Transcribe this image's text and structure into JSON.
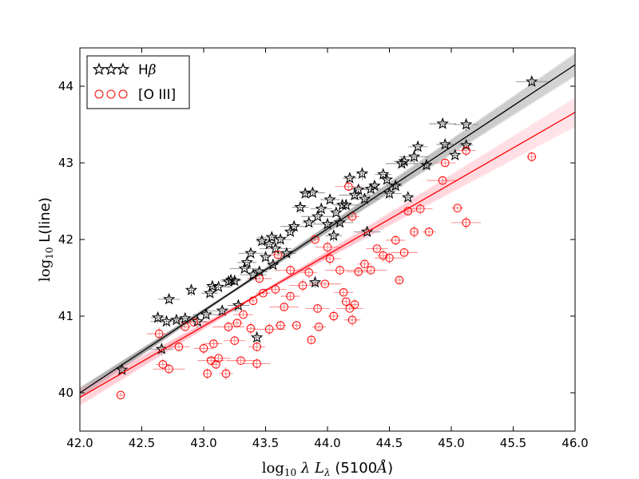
{
  "chart_data": {
    "type": "scatter",
    "title": "",
    "xlabel": "log10 λ Lλ (5100Å)",
    "ylabel": "log10 L(line)",
    "xlabel_parts": {
      "log": "log",
      "sub": "10",
      "mid": " λ L",
      "lam": "λ",
      "tail": " (5100",
      "angstrom": "Å",
      "close": ")"
    },
    "ylabel_parts": {
      "log": "log",
      "sub": "10",
      "rest": " L(line)"
    },
    "xlim": [
      42.0,
      46.0
    ],
    "ylim": [
      39.5,
      44.5
    ],
    "xticks": [
      "42.0",
      "42.5",
      "43.0",
      "43.5",
      "44.0",
      "44.5",
      "45.0",
      "45.5",
      "46.0"
    ],
    "yticks": [
      "40",
      "41",
      "42",
      "43",
      "44"
    ],
    "legend_location": "top-left",
    "colors": {
      "hbeta": "#000000",
      "oiii": "#ff0000",
      "band_hbeta": "#999999",
      "band_oiii": "#ffb3c1"
    },
    "series": [
      {
        "name": "Hβ",
        "legend_label": "Hβ",
        "legend_main": "H",
        "legend_greek": "β",
        "marker": "star",
        "color": "#000000",
        "fit": {
          "slope": 1.07,
          "intercept": -4.94
        },
        "points": [
          [
            42.34,
            40.3
          ],
          [
            42.66,
            40.57
          ],
          [
            42.63,
            40.98
          ],
          [
            42.7,
            40.93
          ],
          [
            42.72,
            41.22
          ],
          [
            42.78,
            40.95
          ],
          [
            42.85,
            40.97
          ],
          [
            42.95,
            40.93
          ],
          [
            42.9,
            41.34
          ],
          [
            43.02,
            41.02
          ],
          [
            43.05,
            41.3
          ],
          [
            43.07,
            41.39
          ],
          [
            43.12,
            41.38
          ],
          [
            43.2,
            41.45
          ],
          [
            43.15,
            41.07
          ],
          [
            43.28,
            41.14
          ],
          [
            43.25,
            41.46
          ],
          [
            43.33,
            41.62
          ],
          [
            43.35,
            41.7
          ],
          [
            43.43,
            40.72
          ],
          [
            43.4,
            41.54
          ],
          [
            43.45,
            41.58
          ],
          [
            43.5,
            41.77
          ],
          [
            43.38,
            41.82
          ],
          [
            43.53,
            41.94
          ],
          [
            43.58,
            41.88
          ],
          [
            43.62,
            42.0
          ],
          [
            43.47,
            41.98
          ],
          [
            43.55,
            42.03
          ],
          [
            43.67,
            41.82
          ],
          [
            43.7,
            42.1
          ],
          [
            43.73,
            42.17
          ],
          [
            43.78,
            42.42
          ],
          [
            43.82,
            42.6
          ],
          [
            43.88,
            42.61
          ],
          [
            43.85,
            42.22
          ],
          [
            43.92,
            42.3
          ],
          [
            43.95,
            42.4
          ],
          [
            43.9,
            41.44
          ],
          [
            44.0,
            42.2
          ],
          [
            44.02,
            42.52
          ],
          [
            44.07,
            42.35
          ],
          [
            44.1,
            42.22
          ],
          [
            44.05,
            42.05
          ],
          [
            44.12,
            42.45
          ],
          [
            44.15,
            42.45
          ],
          [
            44.18,
            42.8
          ],
          [
            44.22,
            42.58
          ],
          [
            44.25,
            42.65
          ],
          [
            44.28,
            42.86
          ],
          [
            44.3,
            42.53
          ],
          [
            44.35,
            42.66
          ],
          [
            44.38,
            42.7
          ],
          [
            44.32,
            42.1
          ],
          [
            44.45,
            42.85
          ],
          [
            44.48,
            42.78
          ],
          [
            44.5,
            42.6
          ],
          [
            44.55,
            42.7
          ],
          [
            44.6,
            42.99
          ],
          [
            44.62,
            43.02
          ],
          [
            44.65,
            42.55
          ],
          [
            44.7,
            43.08
          ],
          [
            44.73,
            43.21
          ],
          [
            44.8,
            42.97
          ],
          [
            44.93,
            43.51
          ],
          [
            44.95,
            43.24
          ],
          [
            45.03,
            43.1
          ],
          [
            45.12,
            43.5
          ],
          [
            45.12,
            43.23
          ],
          [
            45.65,
            44.06
          ],
          [
            43.22,
            41.47
          ],
          [
            43.56,
            41.67
          ]
        ]
      },
      {
        "name": "[O III]",
        "legend_label": "[O III]",
        "marker": "circle",
        "color": "#ff0000",
        "fit": {
          "slope": 0.93,
          "intercept": 0.88
        },
        "points": [
          [
            42.33,
            39.97
          ],
          [
            42.64,
            40.77
          ],
          [
            42.67,
            40.37
          ],
          [
            42.72,
            40.31
          ],
          [
            42.8,
            40.6
          ],
          [
            42.85,
            40.86
          ],
          [
            42.92,
            40.92
          ],
          [
            43.0,
            40.58
          ],
          [
            43.03,
            40.25
          ],
          [
            43.06,
            40.42
          ],
          [
            43.08,
            40.64
          ],
          [
            43.1,
            40.37
          ],
          [
            43.12,
            40.45
          ],
          [
            43.18,
            40.25
          ],
          [
            43.2,
            40.86
          ],
          [
            43.25,
            40.68
          ],
          [
            43.27,
            40.91
          ],
          [
            43.3,
            40.42
          ],
          [
            43.32,
            41.02
          ],
          [
            43.38,
            40.84
          ],
          [
            43.43,
            40.38
          ],
          [
            43.43,
            40.6
          ],
          [
            43.4,
            41.2
          ],
          [
            43.45,
            41.49
          ],
          [
            43.48,
            41.3
          ],
          [
            43.53,
            40.83
          ],
          [
            43.58,
            41.35
          ],
          [
            43.62,
            40.88
          ],
          [
            43.65,
            41.12
          ],
          [
            43.7,
            41.26
          ],
          [
            43.75,
            40.88
          ],
          [
            43.8,
            41.4
          ],
          [
            43.85,
            41.57
          ],
          [
            43.87,
            40.69
          ],
          [
            43.92,
            41.1
          ],
          [
            43.93,
            40.86
          ],
          [
            43.98,
            41.42
          ],
          [
            44.02,
            41.75
          ],
          [
            44.05,
            41.0
          ],
          [
            44.1,
            41.6
          ],
          [
            44.13,
            41.31
          ],
          [
            44.15,
            41.19
          ],
          [
            44.18,
            41.1
          ],
          [
            44.2,
            40.95
          ],
          [
            44.22,
            41.15
          ],
          [
            44.25,
            41.58
          ],
          [
            44.3,
            41.68
          ],
          [
            44.35,
            41.6
          ],
          [
            44.4,
            41.88
          ],
          [
            44.45,
            41.79
          ],
          [
            44.5,
            41.76
          ],
          [
            44.55,
            41.99
          ],
          [
            44.58,
            41.47
          ],
          [
            44.62,
            41.83
          ],
          [
            44.65,
            42.37
          ],
          [
            44.7,
            42.1
          ],
          [
            44.75,
            42.4
          ],
          [
            44.82,
            42.1
          ],
          [
            44.93,
            42.77
          ],
          [
            44.95,
            43.0
          ],
          [
            45.05,
            42.41
          ],
          [
            45.12,
            42.22
          ],
          [
            45.12,
            43.16
          ],
          [
            45.65,
            43.08
          ],
          [
            44.17,
            42.69
          ],
          [
            43.6,
            41.8
          ],
          [
            43.9,
            42.0
          ],
          [
            44.0,
            41.9
          ],
          [
            44.2,
            42.3
          ],
          [
            43.7,
            41.6
          ]
        ]
      }
    ]
  }
}
